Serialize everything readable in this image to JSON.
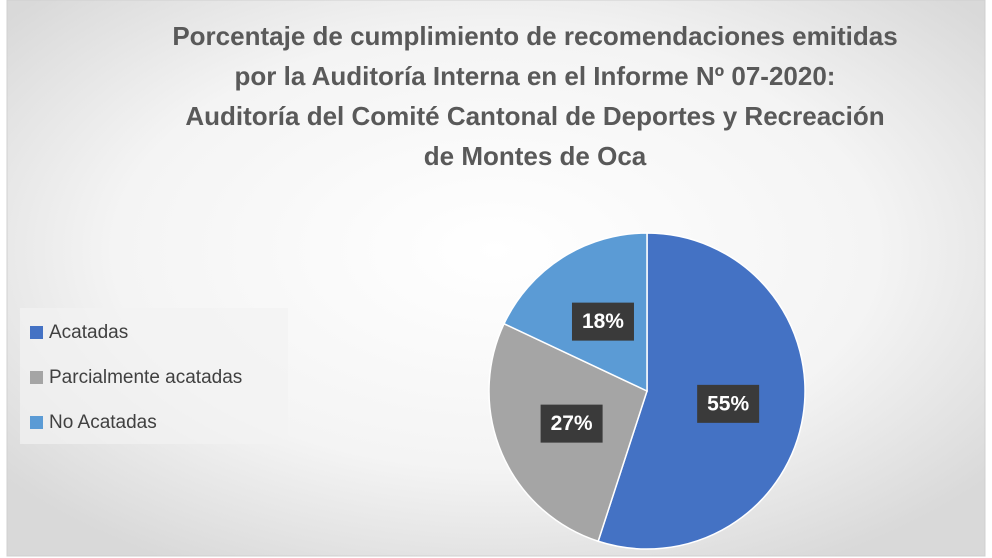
{
  "chart_data": {
    "type": "pie",
    "title": [
      "Porcentaje de cumplimiento de recomendaciones emitidas",
      "por la Auditoría Interna en el Informe Nº 07-2020:",
      "Auditoría del Comité Cantonal de Deportes y Recreación",
      "de Montes de Oca"
    ],
    "categories": [
      "Acatadas",
      "Parcialmente acatadas",
      "No Acatadas"
    ],
    "values": [
      55,
      27,
      18
    ],
    "value_labels": [
      "55%",
      "27%",
      "18%"
    ],
    "colors": [
      "#4472c4",
      "#a5a5a5",
      "#5b9bd5"
    ],
    "legend": "left"
  }
}
